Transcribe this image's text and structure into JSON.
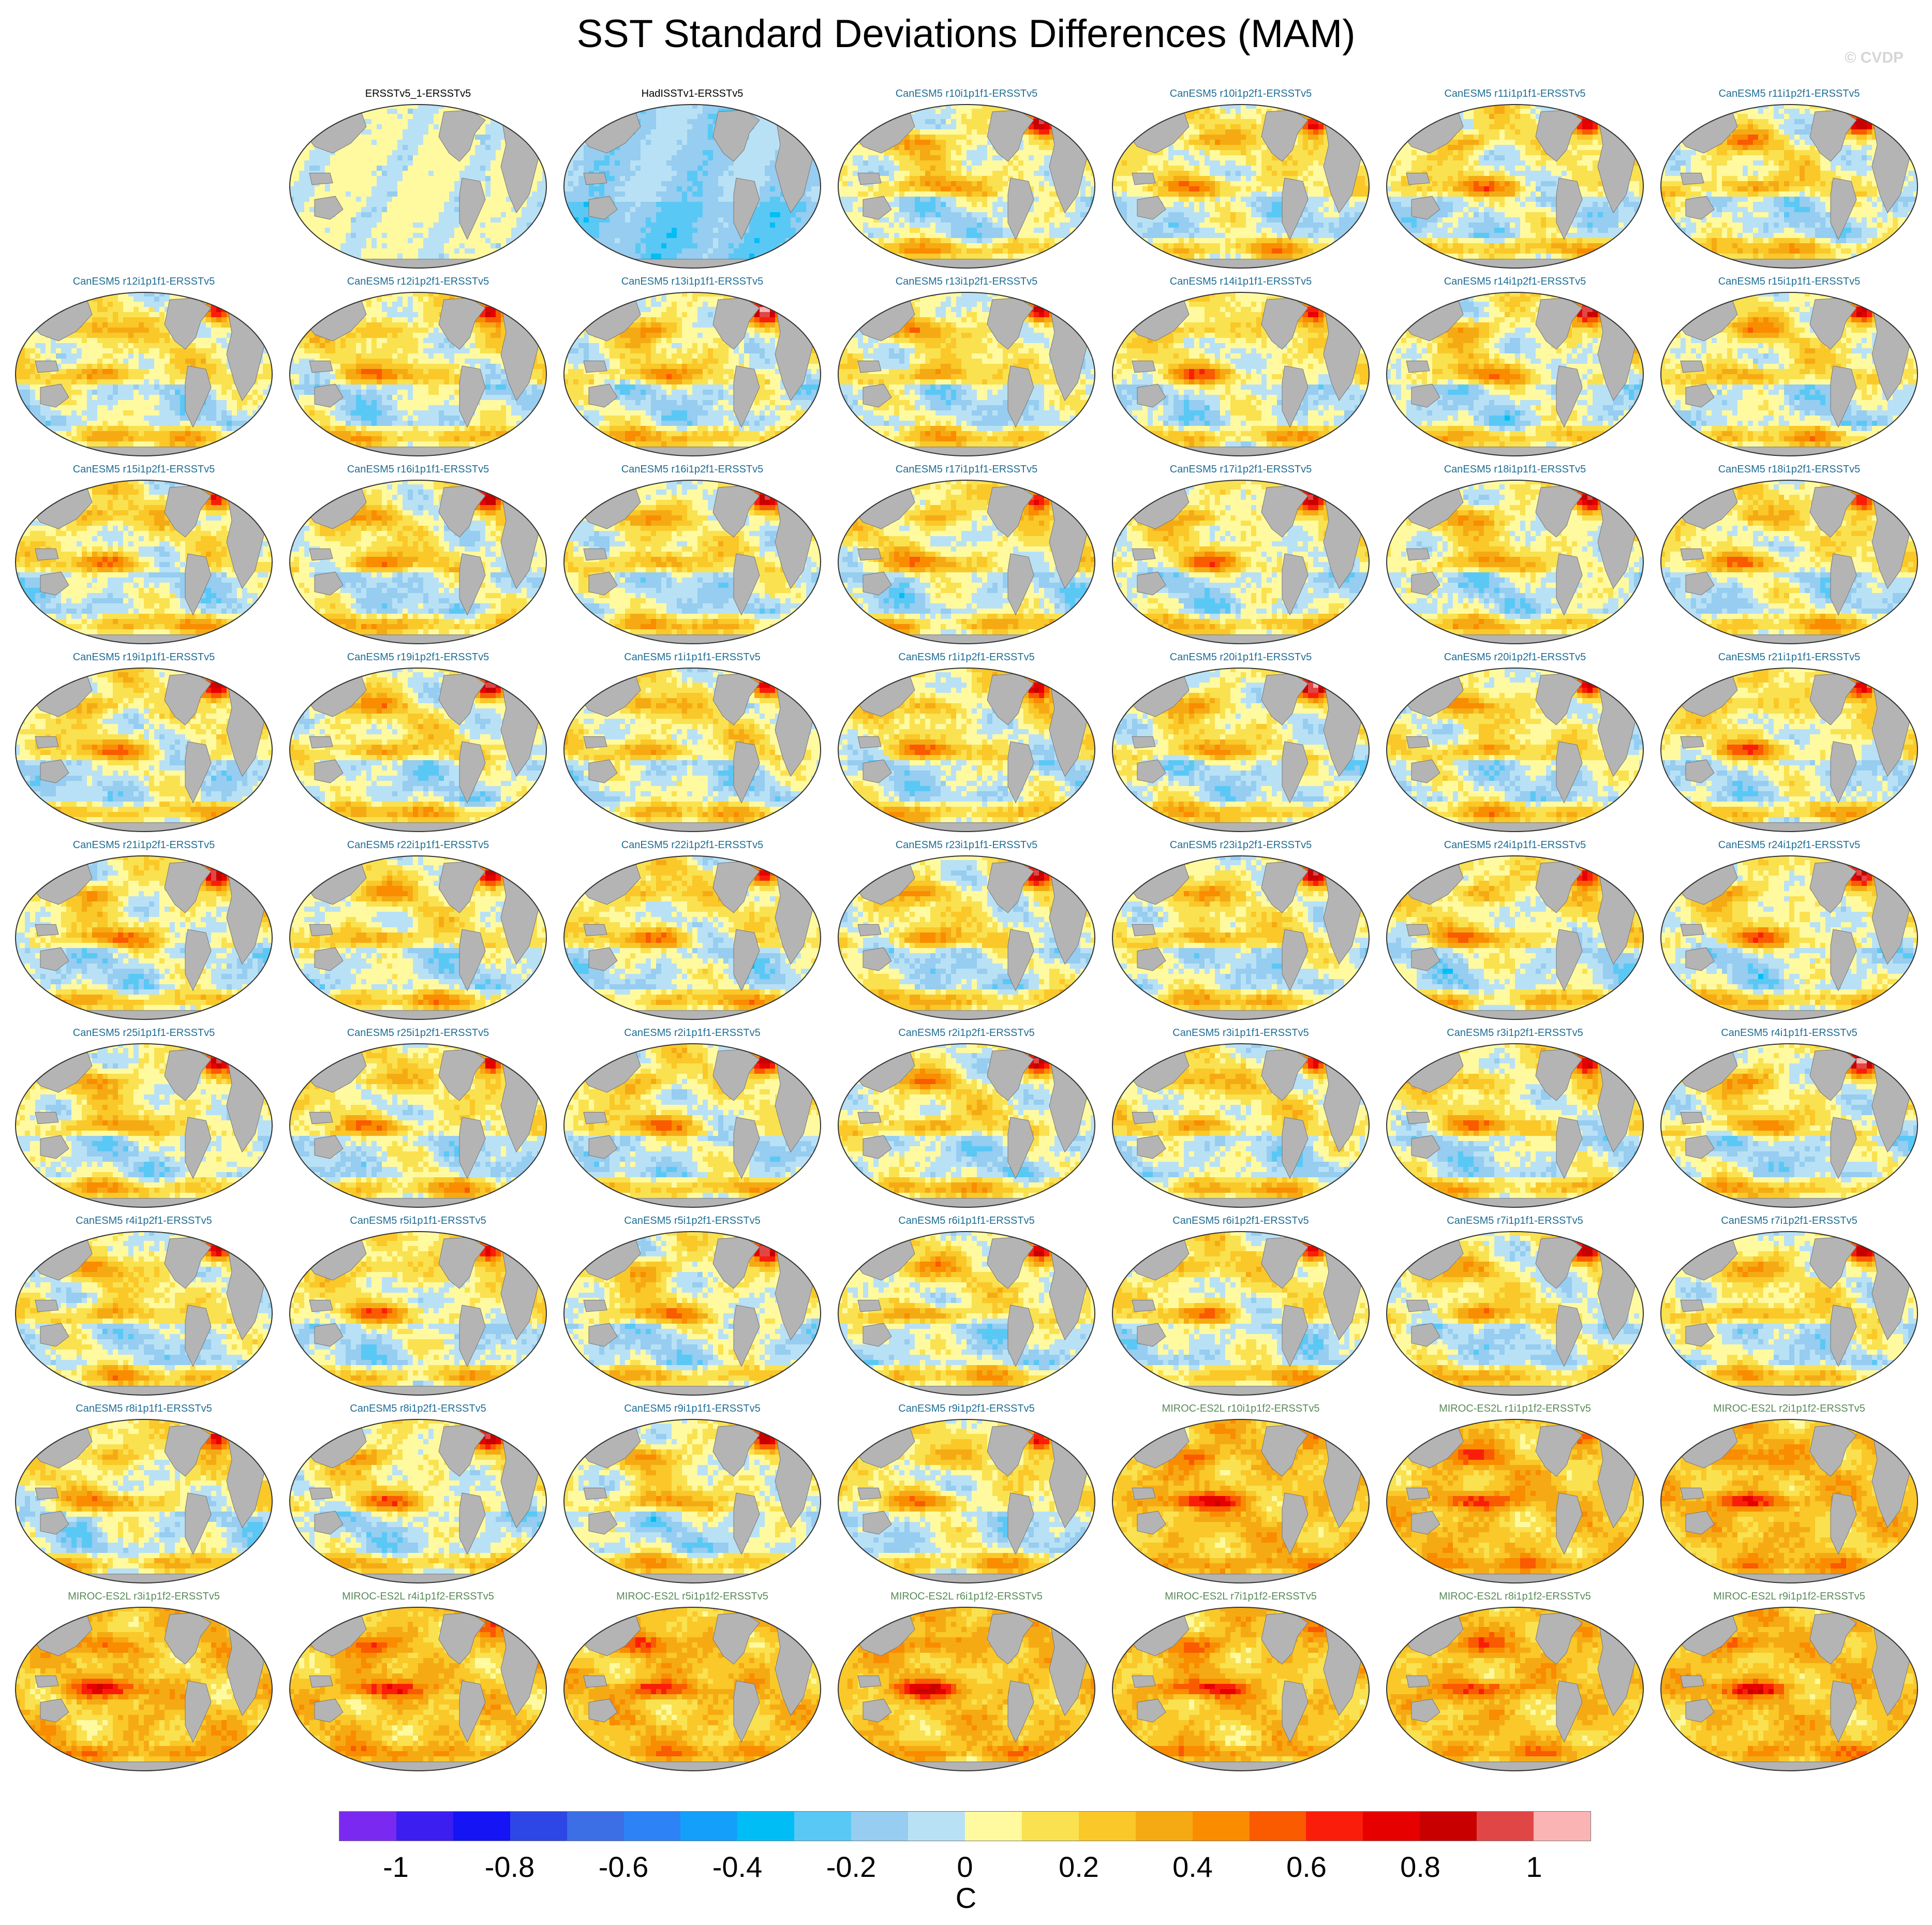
{
  "title": "SST Standard Deviations Differences (MAM)",
  "watermark": "© CVDP",
  "chart_data": {
    "type": "heatmap",
    "title": "SST Standard Deviations Differences (MAM)",
    "projection": "global Robinson maps",
    "layout": {
      "columns": 7,
      "rows": 9,
      "first_row_starts_at_column": 2
    },
    "panels": [
      {
        "label": "ERSSTv5_1-ERSSTv5",
        "group": "obs",
        "pattern": "obs-near-zero"
      },
      {
        "label": "HadISSTv1-ERSSTv5",
        "group": "obs",
        "pattern": "obs-negative"
      },
      {
        "label": "CanESM5 r10i1p1f1-ERSSTv5",
        "group": "CanESM5",
        "pattern": "canesm"
      },
      {
        "label": "CanESM5 r10i1p2f1-ERSSTv5",
        "group": "CanESM5",
        "pattern": "canesm"
      },
      {
        "label": "CanESM5 r11i1p1f1-ERSSTv5",
        "group": "CanESM5",
        "pattern": "canesm"
      },
      {
        "label": "CanESM5 r11i1p2f1-ERSSTv5",
        "group": "CanESM5",
        "pattern": "canesm"
      },
      {
        "label": "CanESM5 r12i1p1f1-ERSSTv5",
        "group": "CanESM5",
        "pattern": "canesm"
      },
      {
        "label": "CanESM5 r12i1p2f1-ERSSTv5",
        "group": "CanESM5",
        "pattern": "canesm"
      },
      {
        "label": "CanESM5 r13i1p1f1-ERSSTv5",
        "group": "CanESM5",
        "pattern": "canesm"
      },
      {
        "label": "CanESM5 r13i1p2f1-ERSSTv5",
        "group": "CanESM5",
        "pattern": "canesm"
      },
      {
        "label": "CanESM5 r14i1p1f1-ERSSTv5",
        "group": "CanESM5",
        "pattern": "canesm"
      },
      {
        "label": "CanESM5 r14i1p2f1-ERSSTv5",
        "group": "CanESM5",
        "pattern": "canesm"
      },
      {
        "label": "CanESM5 r15i1p1f1-ERSSTv5",
        "group": "CanESM5",
        "pattern": "canesm"
      },
      {
        "label": "CanESM5 r15i1p2f1-ERSSTv5",
        "group": "CanESM5",
        "pattern": "canesm"
      },
      {
        "label": "CanESM5 r16i1p1f1-ERSSTv5",
        "group": "CanESM5",
        "pattern": "canesm"
      },
      {
        "label": "CanESM5 r16i1p2f1-ERSSTv5",
        "group": "CanESM5",
        "pattern": "canesm"
      },
      {
        "label": "CanESM5 r17i1p1f1-ERSSTv5",
        "group": "CanESM5",
        "pattern": "canesm"
      },
      {
        "label": "CanESM5 r17i1p2f1-ERSSTv5",
        "group": "CanESM5",
        "pattern": "canesm"
      },
      {
        "label": "CanESM5 r18i1p1f1-ERSSTv5",
        "group": "CanESM5",
        "pattern": "canesm"
      },
      {
        "label": "CanESM5 r18i1p2f1-ERSSTv5",
        "group": "CanESM5",
        "pattern": "canesm"
      },
      {
        "label": "CanESM5 r19i1p1f1-ERSSTv5",
        "group": "CanESM5",
        "pattern": "canesm"
      },
      {
        "label": "CanESM5 r19i1p2f1-ERSSTv5",
        "group": "CanESM5",
        "pattern": "canesm"
      },
      {
        "label": "CanESM5 r1i1p1f1-ERSSTv5",
        "group": "CanESM5",
        "pattern": "canesm"
      },
      {
        "label": "CanESM5 r1i1p2f1-ERSSTv5",
        "group": "CanESM5",
        "pattern": "canesm"
      },
      {
        "label": "CanESM5 r20i1p1f1-ERSSTv5",
        "group": "CanESM5",
        "pattern": "canesm"
      },
      {
        "label": "CanESM5 r20i1p2f1-ERSSTv5",
        "group": "CanESM5",
        "pattern": "canesm"
      },
      {
        "label": "CanESM5 r21i1p1f1-ERSSTv5",
        "group": "CanESM5",
        "pattern": "canesm"
      },
      {
        "label": "CanESM5 r21i1p2f1-ERSSTv5",
        "group": "CanESM5",
        "pattern": "canesm"
      },
      {
        "label": "CanESM5 r22i1p1f1-ERSSTv5",
        "group": "CanESM5",
        "pattern": "canesm"
      },
      {
        "label": "CanESM5 r22i1p2f1-ERSSTv5",
        "group": "CanESM5",
        "pattern": "canesm"
      },
      {
        "label": "CanESM5 r23i1p1f1-ERSSTv5",
        "group": "CanESM5",
        "pattern": "canesm"
      },
      {
        "label": "CanESM5 r23i1p2f1-ERSSTv5",
        "group": "CanESM5",
        "pattern": "canesm"
      },
      {
        "label": "CanESM5 r24i1p1f1-ERSSTv5",
        "group": "CanESM5",
        "pattern": "canesm"
      },
      {
        "label": "CanESM5 r24i1p2f1-ERSSTv5",
        "group": "CanESM5",
        "pattern": "canesm"
      },
      {
        "label": "CanESM5 r25i1p1f1-ERSSTv5",
        "group": "CanESM5",
        "pattern": "canesm"
      },
      {
        "label": "CanESM5 r25i1p2f1-ERSSTv5",
        "group": "CanESM5",
        "pattern": "canesm"
      },
      {
        "label": "CanESM5 r2i1p1f1-ERSSTv5",
        "group": "CanESM5",
        "pattern": "canesm"
      },
      {
        "label": "CanESM5 r2i1p2f1-ERSSTv5",
        "group": "CanESM5",
        "pattern": "canesm"
      },
      {
        "label": "CanESM5 r3i1p1f1-ERSSTv5",
        "group": "CanESM5",
        "pattern": "canesm"
      },
      {
        "label": "CanESM5 r3i1p2f1-ERSSTv5",
        "group": "CanESM5",
        "pattern": "canesm"
      },
      {
        "label": "CanESM5 r4i1p1f1-ERSSTv5",
        "group": "CanESM5",
        "pattern": "canesm"
      },
      {
        "label": "CanESM5 r4i1p2f1-ERSSTv5",
        "group": "CanESM5",
        "pattern": "canesm"
      },
      {
        "label": "CanESM5 r5i1p1f1-ERSSTv5",
        "group": "CanESM5",
        "pattern": "canesm"
      },
      {
        "label": "CanESM5 r5i1p2f1-ERSSTv5",
        "group": "CanESM5",
        "pattern": "canesm"
      },
      {
        "label": "CanESM5 r6i1p1f1-ERSSTv5",
        "group": "CanESM5",
        "pattern": "canesm"
      },
      {
        "label": "CanESM5 r6i1p2f1-ERSSTv5",
        "group": "CanESM5",
        "pattern": "canesm"
      },
      {
        "label": "CanESM5 r7i1p1f1-ERSSTv5",
        "group": "CanESM5",
        "pattern": "canesm"
      },
      {
        "label": "CanESM5 r7i1p2f1-ERSSTv5",
        "group": "CanESM5",
        "pattern": "canesm"
      },
      {
        "label": "CanESM5 r8i1p1f1-ERSSTv5",
        "group": "CanESM5",
        "pattern": "canesm"
      },
      {
        "label": "CanESM5 r8i1p2f1-ERSSTv5",
        "group": "CanESM5",
        "pattern": "canesm"
      },
      {
        "label": "CanESM5 r9i1p1f1-ERSSTv5",
        "group": "CanESM5",
        "pattern": "canesm"
      },
      {
        "label": "CanESM5 r9i1p2f1-ERSSTv5",
        "group": "CanESM5",
        "pattern": "canesm"
      },
      {
        "label": "MIROC-ES2L r10i1p1f2-ERSSTv5",
        "group": "MIROC-ES2L",
        "pattern": "miroc"
      },
      {
        "label": "MIROC-ES2L r1i1p1f2-ERSSTv5",
        "group": "MIROC-ES2L",
        "pattern": "miroc"
      },
      {
        "label": "MIROC-ES2L r2i1p1f2-ERSSTv5",
        "group": "MIROC-ES2L",
        "pattern": "miroc"
      },
      {
        "label": "MIROC-ES2L r3i1p1f2-ERSSTv5",
        "group": "MIROC-ES2L",
        "pattern": "miroc"
      },
      {
        "label": "MIROC-ES2L r4i1p1f2-ERSSTv5",
        "group": "MIROC-ES2L",
        "pattern": "miroc"
      },
      {
        "label": "MIROC-ES2L r5i1p1f2-ERSSTv5",
        "group": "MIROC-ES2L",
        "pattern": "miroc"
      },
      {
        "label": "MIROC-ES2L r6i1p1f2-ERSSTv5",
        "group": "MIROC-ES2L",
        "pattern": "miroc"
      },
      {
        "label": "MIROC-ES2L r7i1p1f2-ERSSTv5",
        "group": "MIROC-ES2L",
        "pattern": "miroc"
      },
      {
        "label": "MIROC-ES2L r8i1p1f2-ERSSTv5",
        "group": "MIROC-ES2L",
        "pattern": "miroc"
      },
      {
        "label": "MIROC-ES2L r9i1p1f2-ERSSTv5",
        "group": "MIROC-ES2L",
        "pattern": "miroc"
      }
    ],
    "label_colors": {
      "obs": "#000000",
      "CanESM5": "#1f6e94",
      "MIROC-ES2L": "#5a8a5a"
    },
    "land_color": "#b4b4b4",
    "colorbar": {
      "unit": "C",
      "range": [
        -1.1,
        1.1
      ],
      "step": 0.1,
      "tick_labels": [
        "-1",
        "-0.8",
        "-0.6",
        "-0.4",
        "-0.2",
        "0",
        "0.2",
        "0.4",
        "0.6",
        "0.8",
        "1"
      ],
      "tick_values": [
        -1,
        -0.8,
        -0.6,
        -0.4,
        -0.2,
        0,
        0.2,
        0.4,
        0.6,
        0.8,
        1
      ],
      "colors": [
        "#7a2af0",
        "#3c1ef0",
        "#1414f5",
        "#2d46e6",
        "#3c6ee6",
        "#2d82f5",
        "#14a0fa",
        "#00bef5",
        "#5ac8f5",
        "#96cdf0",
        "#b9e1f5",
        "#fffaa0",
        "#fae150",
        "#fac828",
        "#f5aa14",
        "#fa8c00",
        "#fa5a00",
        "#fa1e0a",
        "#e60000",
        "#c80000",
        "#e14646",
        "#fab4b4"
      ]
    }
  }
}
